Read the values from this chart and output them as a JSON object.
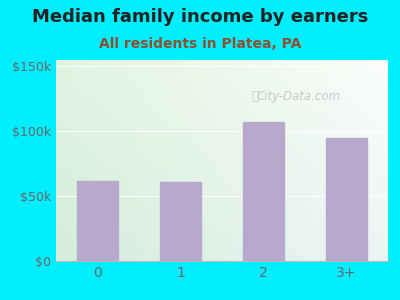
{
  "title": "Median family income by earners",
  "subtitle": "All residents in Platea, PA",
  "categories": [
    "0",
    "1",
    "2",
    "3+"
  ],
  "values": [
    62000,
    61000,
    107000,
    95000
  ],
  "bar_color": "#b8a8cc",
  "background_outer": "#00efff",
  "title_color": "#222222",
  "subtitle_color": "#8b5030",
  "tick_label_color": "#666666",
  "ytick_labels": [
    "$0",
    "$50k",
    "$100k",
    "$150k"
  ],
  "ytick_values": [
    0,
    50000,
    100000,
    150000
  ],
  "ylim": [
    0,
    155000
  ],
  "watermark": "City-Data.com",
  "title_fontsize": 13,
  "subtitle_fontsize": 10,
  "bg_color_topleft": "#d0eed0",
  "bg_color_topright": "#eafaff",
  "bg_color_bottom": "#e8f8e0"
}
